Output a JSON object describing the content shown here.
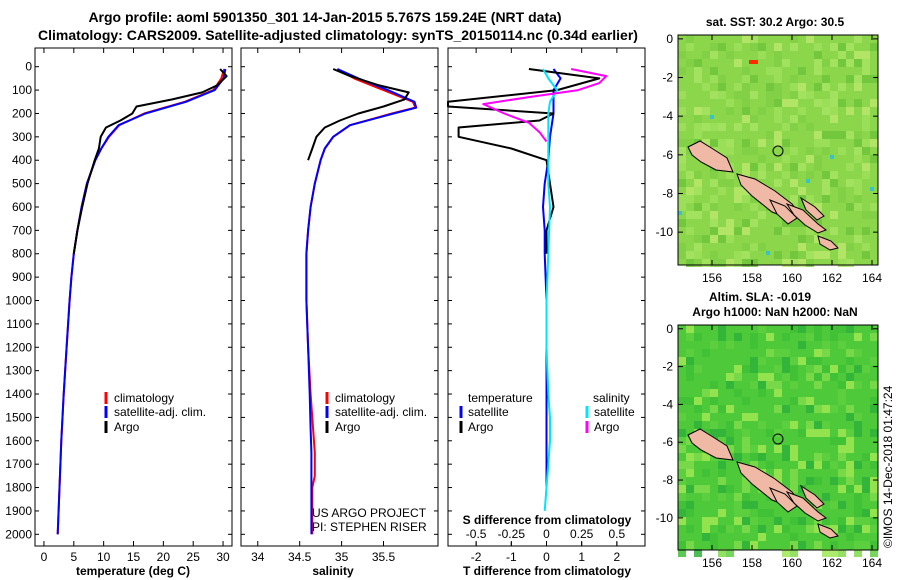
{
  "header": {
    "line1": "Argo profile: aoml 5901350_301 14-Jan-2015 5.767S 159.24E (NRT data)",
    "line2": "Climatology: CARS2009. Satellite-adjusted climatology: synTS_20150114.nc (0.34d earlier)"
  },
  "colors": {
    "climatology": "#ff0000",
    "satellite": "#0000ff",
    "argo": "#000000",
    "sat_salinity": "#00e5ff",
    "argo_salinity": "#ff00ff",
    "sst_field": "#8bd64a",
    "sla_field": "#4ec93a",
    "land": "#f0b9a6"
  },
  "chart_data": [
    {
      "type": "line",
      "xlabel": "temperature (deg C)",
      "xticks": [
        0,
        5,
        10,
        15,
        20,
        25,
        30
      ],
      "xlim": [
        -1.5,
        31.5
      ],
      "ylim": [
        2050,
        0
      ],
      "yticks": [
        0,
        100,
        200,
        300,
        400,
        500,
        600,
        700,
        800,
        900,
        1000,
        1100,
        1200,
        1300,
        1400,
        1500,
        1600,
        1700,
        1800,
        1900,
        2000
      ],
      "series": [
        {
          "name": "climatology",
          "color": "#ff0000",
          "y": [
            10,
            50,
            100,
            150,
            200,
            250,
            300,
            350,
            400,
            500,
            600,
            700,
            800,
            900,
            1000,
            1200,
            1400,
            1600,
            1800,
            2000
          ],
          "x": [
            30.2,
            29.7,
            28.4,
            23.6,
            16.8,
            12.6,
            10.9,
            9.6,
            8.6,
            7.2,
            6.3,
            5.6,
            5.0,
            4.6,
            4.3,
            3.8,
            3.3,
            2.9,
            2.6,
            2.3
          ]
        },
        {
          "name": "satellite-adj. clim.",
          "color": "#0000ff",
          "y": [
            10,
            50,
            100,
            150,
            200,
            250,
            300,
            350,
            400,
            500,
            600,
            700,
            800,
            900,
            1000,
            1200,
            1400,
            1600,
            1800,
            2000
          ],
          "x": [
            30.4,
            30.1,
            28.6,
            23.8,
            17.0,
            12.5,
            10.8,
            9.6,
            8.6,
            7.2,
            6.3,
            5.6,
            5.0,
            4.6,
            4.3,
            3.8,
            3.3,
            2.9,
            2.6,
            2.3
          ]
        },
        {
          "name": "Argo",
          "color": "#000000",
          "y": [
            10,
            40,
            80,
            110,
            140,
            170,
            200,
            230,
            260,
            300,
            350,
            400,
            500,
            600,
            700,
            800
          ],
          "x": [
            29.5,
            30.6,
            29.0,
            26.5,
            21.5,
            15.5,
            14.8,
            12.8,
            10.4,
            9.5,
            9.2,
            8.5,
            7.3,
            6.4,
            5.6,
            5.0
          ]
        }
      ],
      "legend": [
        "climatology",
        "satellite-adj. clim.",
        "Argo"
      ]
    },
    {
      "type": "line",
      "xlabel": "salinity",
      "xticks": [
        34,
        34.5,
        35,
        35.5
      ],
      "xlim": [
        33.8,
        36.15
      ],
      "ylim": [
        2050,
        0
      ],
      "series": [
        {
          "name": "climatology",
          "color": "#ff0000",
          "y": [
            10,
            50,
            100,
            150,
            175,
            200,
            250,
            300,
            350,
            400,
            500,
            600,
            700,
            800,
            1000,
            1200,
            1400,
            1550,
            1650,
            1750,
            1800,
            2000
          ],
          "x": [
            34.95,
            35.15,
            35.5,
            35.85,
            35.88,
            35.6,
            35.1,
            34.9,
            34.8,
            34.75,
            34.68,
            34.63,
            34.6,
            34.58,
            34.58,
            34.6,
            34.63,
            34.66,
            34.68,
            34.68,
            34.65,
            34.65
          ]
        },
        {
          "name": "satellite-adj. clim.",
          "color": "#0000ff",
          "y": [
            10,
            50,
            100,
            150,
            175,
            200,
            250,
            300,
            350,
            400,
            500,
            600,
            700,
            800,
            1000,
            1200,
            1400,
            1550,
            1650,
            1750,
            1800,
            2000
          ],
          "x": [
            34.95,
            35.2,
            35.55,
            35.87,
            35.89,
            35.62,
            35.1,
            34.9,
            34.8,
            34.75,
            34.68,
            34.63,
            34.6,
            34.58,
            34.58,
            34.6,
            34.62,
            34.63,
            34.64,
            34.64,
            34.64,
            34.64
          ]
        },
        {
          "name": "Argo",
          "color": "#000000",
          "y": [
            10,
            40,
            80,
            110,
            140,
            170,
            200,
            230,
            260,
            300,
            350,
            400
          ],
          "x": [
            34.9,
            35.1,
            35.45,
            35.8,
            35.75,
            35.5,
            35.2,
            34.98,
            34.8,
            34.7,
            34.65,
            34.6
          ]
        }
      ],
      "legend": [
        "climatology",
        "satellite-adj. clim.",
        "Argo"
      ],
      "annotation": [
        "US ARGO PROJECT",
        "PI: STEPHEN RISER"
      ]
    },
    {
      "type": "line",
      "xlabel": "T difference from climatology",
      "title_bottom": "S difference from climatology",
      "xticks": [
        -2,
        -1,
        0,
        1,
        2
      ],
      "xlim": [
        -2.8,
        2.8
      ],
      "top_ticks": [
        -0.5,
        -0.25,
        0,
        0.25,
        0.5
      ],
      "top_tick_labels": [
        "-0.5",
        "-0.25",
        "0",
        "0.25",
        "0.5"
      ],
      "ylim": [
        2050,
        0
      ],
      "series": [
        {
          "name": "temperature satellite",
          "color": "#0000ff",
          "y": [
            10,
            50,
            100,
            150,
            200,
            300,
            400,
            500,
            600,
            700,
            800,
            1000,
            1200,
            1400,
            1600,
            1800
          ],
          "x": [
            0.2,
            0.4,
            0.2,
            0.2,
            0.2,
            0.1,
            0.05,
            -0.05,
            -0.1,
            -0.05,
            -0.05,
            0.0,
            0.0,
            0.0,
            0.0,
            0.0
          ]
        },
        {
          "name": "temperature Argo",
          "color": "#000000",
          "y": [
            10,
            50,
            100,
            150,
            170,
            200,
            230,
            260,
            300,
            350,
            400,
            500,
            600,
            700,
            800
          ],
          "x": [
            -0.5,
            1.5,
            0.3,
            -2.8,
            -2.8,
            0.2,
            -0.2,
            -2.5,
            -2.5,
            -1.0,
            0.0,
            0.1,
            0.2,
            0.0,
            0.0
          ]
        },
        {
          "name": "salinity satellite",
          "color": "#00e5ff",
          "y": [
            10,
            50,
            100,
            150,
            200,
            300,
            400,
            500,
            600,
            800,
            1000,
            1200,
            1400,
            1500,
            1600,
            1700,
            1800,
            1900
          ],
          "x": [
            -0.1,
            0.05,
            0.3,
            0.1,
            0.05,
            0.05,
            0.05,
            0.05,
            0.1,
            0.05,
            0.0,
            0.0,
            0.05,
            0.1,
            0.1,
            0.05,
            0.0,
            -0.05
          ]
        },
        {
          "name": "salinity Argo",
          "color": "#ff00ff",
          "y": [
            10,
            40,
            70,
            100,
            130,
            160,
            200,
            240,
            280,
            320
          ],
          "x": [
            0.7,
            1.7,
            1.5,
            0.9,
            -0.5,
            -1.8,
            -1.2,
            -0.5,
            -0.2,
            0.0
          ]
        }
      ],
      "legend_temperature": {
        "title": "temperature",
        "items": [
          "satellite",
          "Argo"
        ]
      },
      "legend_salinity": {
        "title": "salinity",
        "items": [
          "satellite",
          "Argo"
        ]
      }
    },
    {
      "type": "heatmap",
      "title": "sat. SST: 30.2 Argo: 30.5",
      "xticks": [
        156,
        158,
        160,
        162,
        164
      ],
      "yticks": [
        0,
        -2,
        -4,
        -6,
        -8,
        -10
      ],
      "xlim": [
        154.3,
        164.3
      ],
      "ylim": [
        -11.7,
        0.2
      ],
      "marker": {
        "lon": 159.24,
        "lat": -5.767
      }
    },
    {
      "type": "heatmap",
      "title": "Altim. SLA: -0.019",
      "subtitle": "Argo h1000: NaN h2000: NaN",
      "xticks": [
        156,
        158,
        160,
        162,
        164
      ],
      "yticks": [
        0,
        -2,
        -4,
        -6,
        -8,
        -10
      ],
      "xlim": [
        154.3,
        164.3
      ],
      "ylim": [
        -11.7,
        0.2
      ],
      "marker": {
        "lon": 159.24,
        "lat": -5.767
      }
    }
  ],
  "credit": "©IMOS 14-Dec-2018 01:47:24"
}
